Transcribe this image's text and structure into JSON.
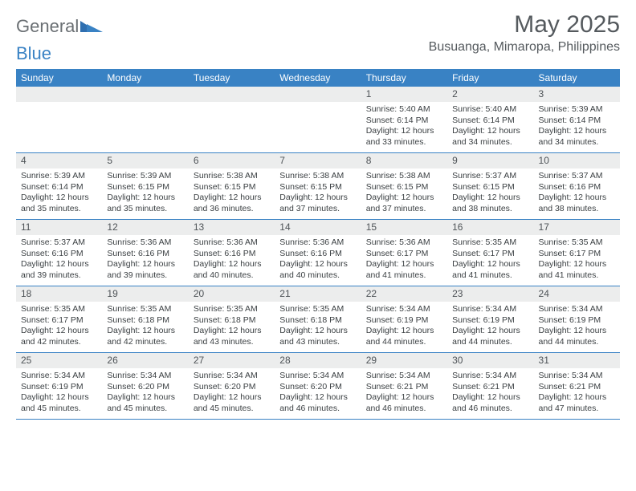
{
  "logo": {
    "general": "General",
    "blue": "Blue"
  },
  "title": "May 2025",
  "location": "Busuanga, Mimaropa, Philippines",
  "day_headers": [
    "Sunday",
    "Monday",
    "Tuesday",
    "Wednesday",
    "Thursday",
    "Friday",
    "Saturday"
  ],
  "colors": {
    "header_bg": "#3982c4",
    "header_text": "#ffffff",
    "day_bar_bg": "#eceded",
    "text": "#3a3f42",
    "title_text": "#555a5e"
  },
  "weeks": [
    [
      {
        "n": "",
        "sr": "",
        "ss": "",
        "dl": ""
      },
      {
        "n": "",
        "sr": "",
        "ss": "",
        "dl": ""
      },
      {
        "n": "",
        "sr": "",
        "ss": "",
        "dl": ""
      },
      {
        "n": "",
        "sr": "",
        "ss": "",
        "dl": ""
      },
      {
        "n": "1",
        "sr": "Sunrise: 5:40 AM",
        "ss": "Sunset: 6:14 PM",
        "dl": "Daylight: 12 hours and 33 minutes."
      },
      {
        "n": "2",
        "sr": "Sunrise: 5:40 AM",
        "ss": "Sunset: 6:14 PM",
        "dl": "Daylight: 12 hours and 34 minutes."
      },
      {
        "n": "3",
        "sr": "Sunrise: 5:39 AM",
        "ss": "Sunset: 6:14 PM",
        "dl": "Daylight: 12 hours and 34 minutes."
      }
    ],
    [
      {
        "n": "4",
        "sr": "Sunrise: 5:39 AM",
        "ss": "Sunset: 6:14 PM",
        "dl": "Daylight: 12 hours and 35 minutes."
      },
      {
        "n": "5",
        "sr": "Sunrise: 5:39 AM",
        "ss": "Sunset: 6:15 PM",
        "dl": "Daylight: 12 hours and 35 minutes."
      },
      {
        "n": "6",
        "sr": "Sunrise: 5:38 AM",
        "ss": "Sunset: 6:15 PM",
        "dl": "Daylight: 12 hours and 36 minutes."
      },
      {
        "n": "7",
        "sr": "Sunrise: 5:38 AM",
        "ss": "Sunset: 6:15 PM",
        "dl": "Daylight: 12 hours and 37 minutes."
      },
      {
        "n": "8",
        "sr": "Sunrise: 5:38 AM",
        "ss": "Sunset: 6:15 PM",
        "dl": "Daylight: 12 hours and 37 minutes."
      },
      {
        "n": "9",
        "sr": "Sunrise: 5:37 AM",
        "ss": "Sunset: 6:15 PM",
        "dl": "Daylight: 12 hours and 38 minutes."
      },
      {
        "n": "10",
        "sr": "Sunrise: 5:37 AM",
        "ss": "Sunset: 6:16 PM",
        "dl": "Daylight: 12 hours and 38 minutes."
      }
    ],
    [
      {
        "n": "11",
        "sr": "Sunrise: 5:37 AM",
        "ss": "Sunset: 6:16 PM",
        "dl": "Daylight: 12 hours and 39 minutes."
      },
      {
        "n": "12",
        "sr": "Sunrise: 5:36 AM",
        "ss": "Sunset: 6:16 PM",
        "dl": "Daylight: 12 hours and 39 minutes."
      },
      {
        "n": "13",
        "sr": "Sunrise: 5:36 AM",
        "ss": "Sunset: 6:16 PM",
        "dl": "Daylight: 12 hours and 40 minutes."
      },
      {
        "n": "14",
        "sr": "Sunrise: 5:36 AM",
        "ss": "Sunset: 6:16 PM",
        "dl": "Daylight: 12 hours and 40 minutes."
      },
      {
        "n": "15",
        "sr": "Sunrise: 5:36 AM",
        "ss": "Sunset: 6:17 PM",
        "dl": "Daylight: 12 hours and 41 minutes."
      },
      {
        "n": "16",
        "sr": "Sunrise: 5:35 AM",
        "ss": "Sunset: 6:17 PM",
        "dl": "Daylight: 12 hours and 41 minutes."
      },
      {
        "n": "17",
        "sr": "Sunrise: 5:35 AM",
        "ss": "Sunset: 6:17 PM",
        "dl": "Daylight: 12 hours and 41 minutes."
      }
    ],
    [
      {
        "n": "18",
        "sr": "Sunrise: 5:35 AM",
        "ss": "Sunset: 6:17 PM",
        "dl": "Daylight: 12 hours and 42 minutes."
      },
      {
        "n": "19",
        "sr": "Sunrise: 5:35 AM",
        "ss": "Sunset: 6:18 PM",
        "dl": "Daylight: 12 hours and 42 minutes."
      },
      {
        "n": "20",
        "sr": "Sunrise: 5:35 AM",
        "ss": "Sunset: 6:18 PM",
        "dl": "Daylight: 12 hours and 43 minutes."
      },
      {
        "n": "21",
        "sr": "Sunrise: 5:35 AM",
        "ss": "Sunset: 6:18 PM",
        "dl": "Daylight: 12 hours and 43 minutes."
      },
      {
        "n": "22",
        "sr": "Sunrise: 5:34 AM",
        "ss": "Sunset: 6:19 PM",
        "dl": "Daylight: 12 hours and 44 minutes."
      },
      {
        "n": "23",
        "sr": "Sunrise: 5:34 AM",
        "ss": "Sunset: 6:19 PM",
        "dl": "Daylight: 12 hours and 44 minutes."
      },
      {
        "n": "24",
        "sr": "Sunrise: 5:34 AM",
        "ss": "Sunset: 6:19 PM",
        "dl": "Daylight: 12 hours and 44 minutes."
      }
    ],
    [
      {
        "n": "25",
        "sr": "Sunrise: 5:34 AM",
        "ss": "Sunset: 6:19 PM",
        "dl": "Daylight: 12 hours and 45 minutes."
      },
      {
        "n": "26",
        "sr": "Sunrise: 5:34 AM",
        "ss": "Sunset: 6:20 PM",
        "dl": "Daylight: 12 hours and 45 minutes."
      },
      {
        "n": "27",
        "sr": "Sunrise: 5:34 AM",
        "ss": "Sunset: 6:20 PM",
        "dl": "Daylight: 12 hours and 45 minutes."
      },
      {
        "n": "28",
        "sr": "Sunrise: 5:34 AM",
        "ss": "Sunset: 6:20 PM",
        "dl": "Daylight: 12 hours and 46 minutes."
      },
      {
        "n": "29",
        "sr": "Sunrise: 5:34 AM",
        "ss": "Sunset: 6:21 PM",
        "dl": "Daylight: 12 hours and 46 minutes."
      },
      {
        "n": "30",
        "sr": "Sunrise: 5:34 AM",
        "ss": "Sunset: 6:21 PM",
        "dl": "Daylight: 12 hours and 46 minutes."
      },
      {
        "n": "31",
        "sr": "Sunrise: 5:34 AM",
        "ss": "Sunset: 6:21 PM",
        "dl": "Daylight: 12 hours and 47 minutes."
      }
    ]
  ]
}
